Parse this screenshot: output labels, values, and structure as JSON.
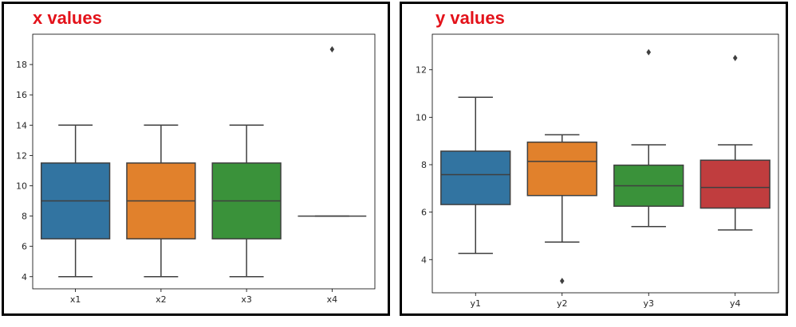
{
  "colors": {
    "blue": "#3274a1",
    "orange": "#e1812c",
    "green": "#3a923a",
    "red": "#c03d3e"
  },
  "chart_data": [
    {
      "type": "box",
      "title": "x values",
      "categories": [
        "x1",
        "x2",
        "x3",
        "x4"
      ],
      "ylim": [
        3.2,
        20.0
      ],
      "yticks": [
        4,
        6,
        8,
        10,
        12,
        14,
        16,
        18
      ],
      "grid": false,
      "boxes": [
        {
          "label": "x1",
          "color": "blue",
          "min": 4,
          "q1": 6.5,
          "median": 9,
          "q3": 11.5,
          "max": 14,
          "outliers": []
        },
        {
          "label": "x2",
          "color": "orange",
          "min": 4,
          "q1": 6.5,
          "median": 9,
          "q3": 11.5,
          "max": 14,
          "outliers": []
        },
        {
          "label": "x3",
          "color": "green",
          "min": 4,
          "q1": 6.5,
          "median": 9,
          "q3": 11.5,
          "max": 14,
          "outliers": []
        },
        {
          "label": "x4",
          "color": "red",
          "min": 8,
          "q1": 8,
          "median": 8,
          "q3": 8,
          "max": 8,
          "outliers": [
            19
          ]
        }
      ]
    },
    {
      "type": "box",
      "title": "y values",
      "categories": [
        "y1",
        "y2",
        "y3",
        "y4"
      ],
      "ylim": [
        2.6,
        13.5
      ],
      "yticks": [
        4,
        6,
        8,
        10,
        12
      ],
      "grid": false,
      "boxes": [
        {
          "label": "y1",
          "color": "blue",
          "min": 4.26,
          "q1": 6.32,
          "median": 7.58,
          "q3": 8.57,
          "max": 10.84,
          "outliers": []
        },
        {
          "label": "y2",
          "color": "orange",
          "min": 4.74,
          "q1": 6.7,
          "median": 8.14,
          "q3": 8.95,
          "max": 9.26,
          "outliers": [
            3.1
          ]
        },
        {
          "label": "y3",
          "color": "green",
          "min": 5.39,
          "q1": 6.25,
          "median": 7.11,
          "q3": 7.98,
          "max": 8.84,
          "outliers": [
            12.74
          ]
        },
        {
          "label": "y4",
          "color": "red",
          "min": 5.25,
          "q1": 6.17,
          "median": 7.04,
          "q3": 8.19,
          "max": 8.84,
          "outliers": [
            12.5
          ]
        }
      ]
    }
  ]
}
